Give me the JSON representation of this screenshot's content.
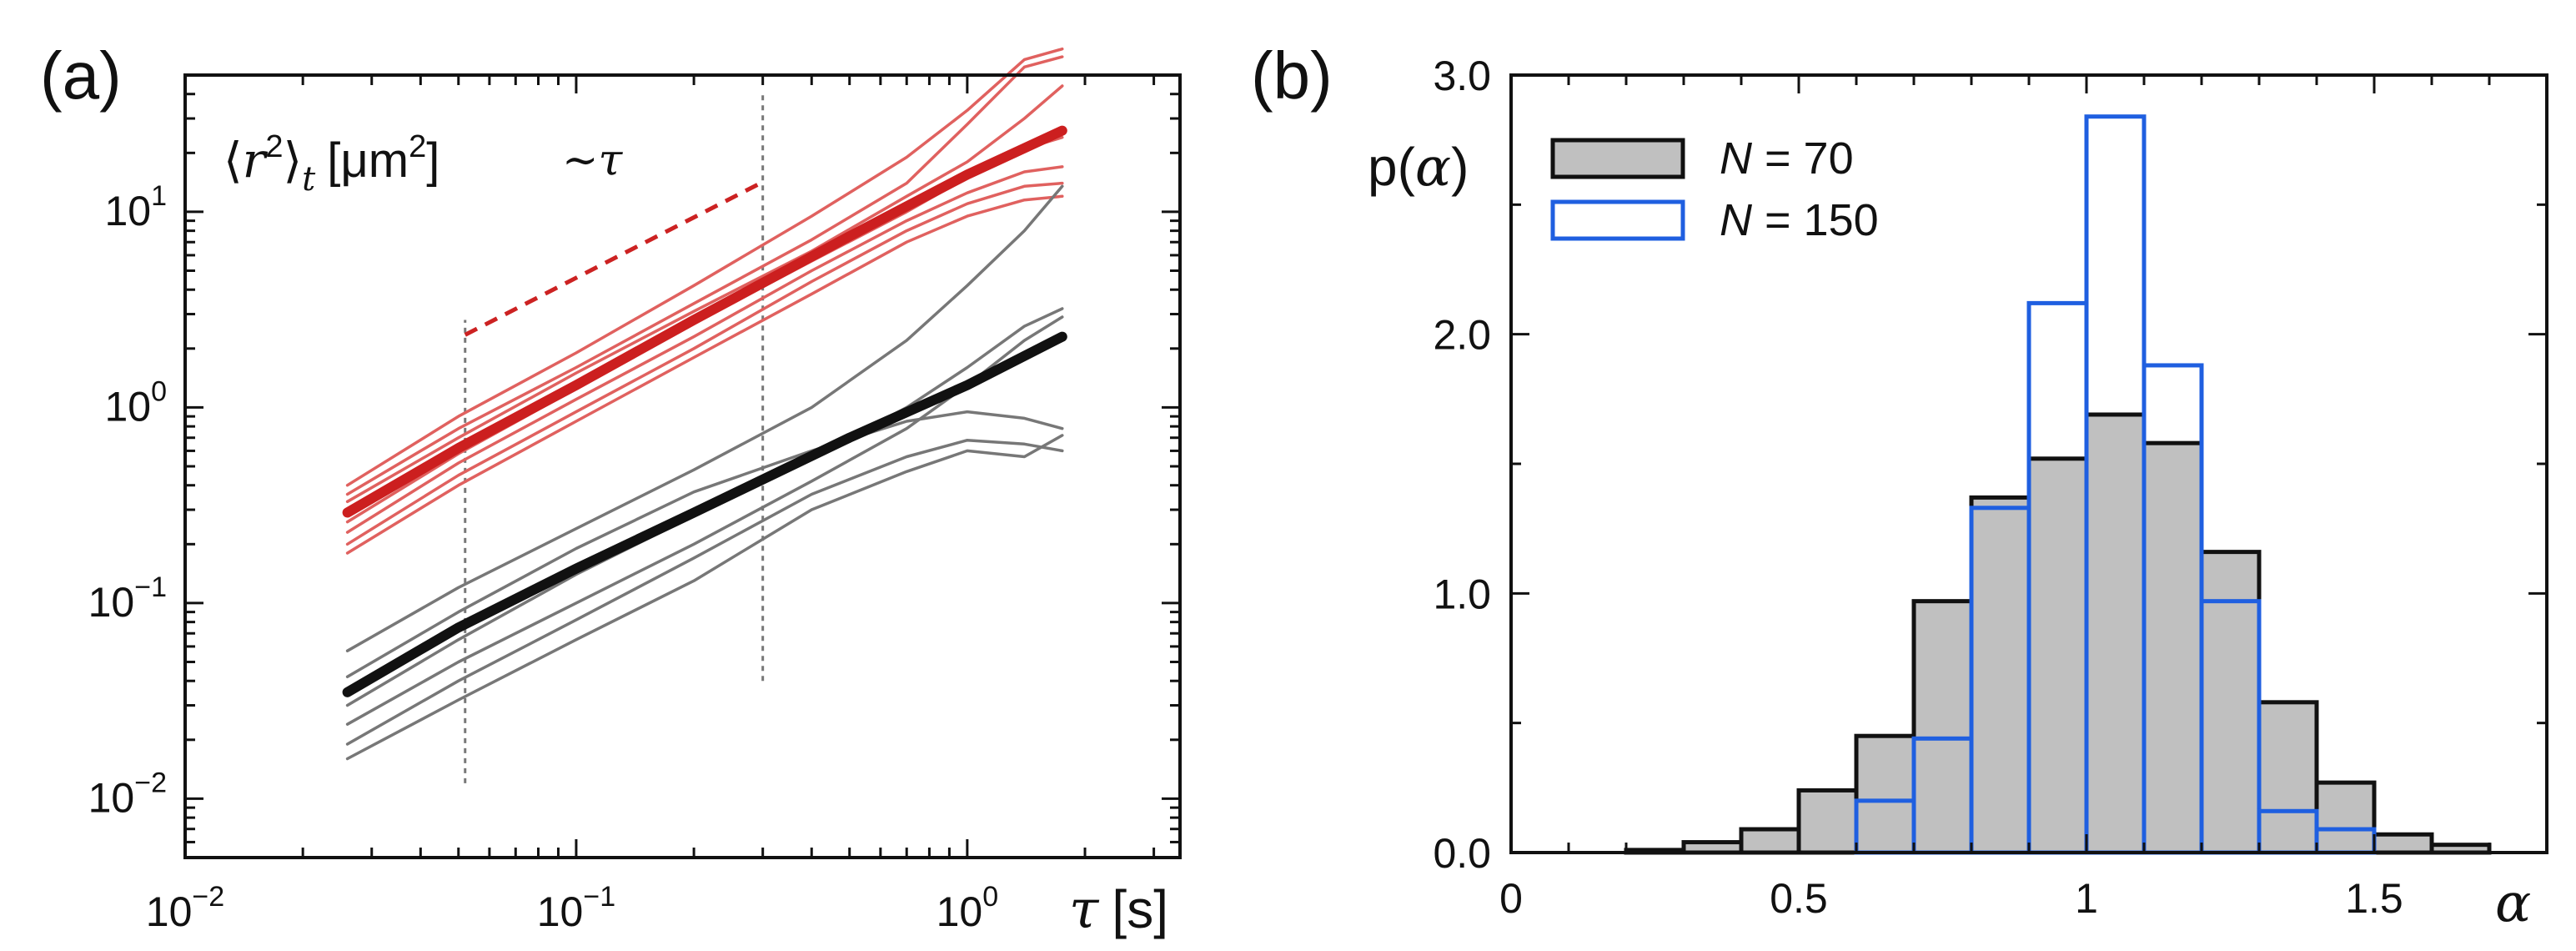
{
  "chart_data": [
    {
      "type": "line",
      "panel_label": "(a)",
      "x_scale": "log",
      "y_scale": "log",
      "xlim": [
        0.01,
        3.5
      ],
      "ylim": [
        0.005,
        50
      ],
      "x_ticks": [
        {
          "value": 0.01,
          "base": "10",
          "exp": "−2"
        },
        {
          "value": 0.1,
          "base": "10",
          "exp": "−1"
        },
        {
          "value": 1,
          "base": "10",
          "exp": "0"
        }
      ],
      "y_ticks": [
        {
          "value": 0.01,
          "base": "10",
          "exp": "−2"
        },
        {
          "value": 0.1,
          "base": "10",
          "exp": "−1"
        },
        {
          "value": 1,
          "base": "10",
          "exp": "0"
        },
        {
          "value": 10,
          "base": "10",
          "exp": "1"
        }
      ],
      "xlabel": {
        "symbol": "τ",
        "unit": "[s]"
      },
      "ylabel": {
        "open": "⟨",
        "var": "r",
        "sup": "2",
        "close": "⟩",
        "sub": "t",
        "unit": "[μm",
        "unit_sup": "2",
        "unit_close": "]"
      },
      "annotation": {
        "text": "∼τ",
        "color": "#cc2222",
        "from": [
          0.052,
          2.35
        ],
        "to": [
          0.3,
          14.2
        ]
      },
      "vlines": [
        0.052,
        0.3
      ],
      "colors": {
        "red": "#cc1f1f",
        "red_light": "#e0615f",
        "black": "#111111",
        "gray": "#777777"
      },
      "series": [
        {
          "group": "red",
          "bold": true,
          "x": [
            0.026,
            0.05,
            0.1,
            0.2,
            0.5,
            1.0,
            1.75
          ],
          "y": [
            0.29,
            0.62,
            1.3,
            2.8,
            7.5,
            15.5,
            26
          ]
        },
        {
          "group": "red",
          "bold": false,
          "x": [
            0.026,
            0.05,
            0.1,
            0.2,
            0.4,
            0.7,
            1.0,
            1.4,
            1.75
          ],
          "y": [
            0.4,
            0.9,
            1.9,
            4.2,
            9.5,
            19,
            33,
            60,
            68
          ]
        },
        {
          "group": "red",
          "bold": false,
          "x": [
            0.026,
            0.05,
            0.1,
            0.2,
            0.4,
            0.7,
            1.0,
            1.4,
            1.75
          ],
          "y": [
            0.36,
            0.78,
            1.6,
            3.4,
            7.2,
            14,
            28,
            55,
            62
          ]
        },
        {
          "group": "red",
          "bold": false,
          "x": [
            0.026,
            0.05,
            0.1,
            0.2,
            0.4,
            0.7,
            1.0,
            1.4,
            1.75
          ],
          "y": [
            0.33,
            0.7,
            1.5,
            3.1,
            6.3,
            12,
            18,
            30,
            44
          ]
        },
        {
          "group": "red",
          "bold": false,
          "x": [
            0.026,
            0.05,
            0.1,
            0.2,
            0.4,
            0.7,
            1.0,
            1.4,
            1.75
          ],
          "y": [
            0.26,
            0.58,
            1.25,
            2.7,
            5.6,
            10,
            15,
            21,
            24
          ]
        },
        {
          "group": "red",
          "bold": false,
          "x": [
            0.026,
            0.05,
            0.1,
            0.2,
            0.4,
            0.7,
            1.0,
            1.4,
            1.75
          ],
          "y": [
            0.23,
            0.52,
            1.1,
            2.3,
            5.0,
            9.0,
            12.5,
            16,
            17
          ]
        },
        {
          "group": "red",
          "bold": false,
          "x": [
            0.026,
            0.05,
            0.1,
            0.2,
            0.4,
            0.7,
            1.0,
            1.4,
            1.75
          ],
          "y": [
            0.2,
            0.45,
            0.95,
            2.0,
            4.4,
            8.0,
            11,
            13.5,
            14
          ]
        },
        {
          "group": "red",
          "bold": false,
          "x": [
            0.026,
            0.05,
            0.1,
            0.2,
            0.4,
            0.7,
            1.0,
            1.4,
            1.75
          ],
          "y": [
            0.18,
            0.4,
            0.85,
            1.8,
            3.8,
            7.0,
            9.5,
            11.5,
            12
          ]
        },
        {
          "group": "black",
          "bold": true,
          "x": [
            0.026,
            0.05,
            0.1,
            0.2,
            0.5,
            1.0,
            1.75
          ],
          "y": [
            0.035,
            0.075,
            0.15,
            0.29,
            0.7,
            1.3,
            2.3
          ]
        },
        {
          "group": "black",
          "bold": false,
          "x": [
            0.026,
            0.05,
            0.1,
            0.2,
            0.4,
            0.7,
            1.0,
            1.4,
            1.75
          ],
          "y": [
            0.057,
            0.12,
            0.24,
            0.48,
            1.0,
            2.2,
            4.2,
            8.0,
            13.5
          ]
        },
        {
          "group": "black",
          "bold": false,
          "x": [
            0.026,
            0.05,
            0.1,
            0.2,
            0.4,
            0.7,
            1.0,
            1.4,
            1.75
          ],
          "y": [
            0.042,
            0.09,
            0.19,
            0.37,
            0.6,
            0.85,
            0.95,
            0.88,
            0.78
          ]
        },
        {
          "group": "black",
          "bold": false,
          "x": [
            0.026,
            0.05,
            0.1,
            0.2,
            0.4,
            0.7,
            1.0,
            1.4,
            1.75
          ],
          "y": [
            0.03,
            0.065,
            0.14,
            0.28,
            0.55,
            1.0,
            1.6,
            2.6,
            3.2
          ]
        },
        {
          "group": "black",
          "bold": false,
          "x": [
            0.026,
            0.05,
            0.1,
            0.2,
            0.4,
            0.7,
            1.0,
            1.4,
            1.75
          ],
          "y": [
            0.024,
            0.05,
            0.1,
            0.2,
            0.42,
            0.78,
            1.3,
            2.2,
            2.9
          ]
        },
        {
          "group": "black",
          "bold": false,
          "x": [
            0.026,
            0.05,
            0.1,
            0.2,
            0.4,
            0.7,
            1.0,
            1.4,
            1.75
          ],
          "y": [
            0.019,
            0.04,
            0.082,
            0.17,
            0.36,
            0.56,
            0.68,
            0.65,
            0.6
          ]
        },
        {
          "group": "black",
          "bold": false,
          "x": [
            0.026,
            0.05,
            0.1,
            0.2,
            0.4,
            0.7,
            1.0,
            1.4,
            1.75
          ],
          "y": [
            0.016,
            0.032,
            0.065,
            0.13,
            0.3,
            0.47,
            0.6,
            0.56,
            0.72
          ]
        }
      ]
    },
    {
      "type": "bar",
      "panel_label": "(b)",
      "xlim": [
        0,
        1.8
      ],
      "ylim": [
        0,
        3.0
      ],
      "x_ticks": [
        "0",
        "0.5",
        "1",
        "1.5"
      ],
      "y_ticks": [
        "0.0",
        "1.0",
        "2.0",
        "3.0"
      ],
      "xlabel": "α",
      "ylabel": {
        "prefix": "p(",
        "var": "α",
        "suffix": ")"
      },
      "bin_edges": [
        0.2,
        0.3,
        0.4,
        0.5,
        0.6,
        0.7,
        0.8,
        0.9,
        1.0,
        1.1,
        1.2,
        1.3,
        1.4,
        1.5,
        1.6,
        1.7
      ],
      "legend_position": "top-left",
      "series": [
        {
          "name": "N = 70",
          "name_var": "N",
          "name_rest": " = 70",
          "fill": "#c0c0c0",
          "stroke": "#111111",
          "values": [
            0.01,
            0.04,
            0.09,
            0.24,
            0.45,
            0.97,
            1.37,
            1.52,
            1.69,
            1.58,
            1.16,
            0.58,
            0.27,
            0.07,
            0.03
          ]
        },
        {
          "name": "N = 150",
          "name_var": "N",
          "name_rest": " = 150",
          "fill": "none",
          "stroke": "#1f5fe0",
          "values": [
            0,
            0,
            0,
            0,
            0.2,
            0.44,
            1.33,
            2.12,
            2.84,
            1.88,
            0.97,
            0.16,
            0.09,
            0,
            0
          ]
        }
      ]
    }
  ]
}
